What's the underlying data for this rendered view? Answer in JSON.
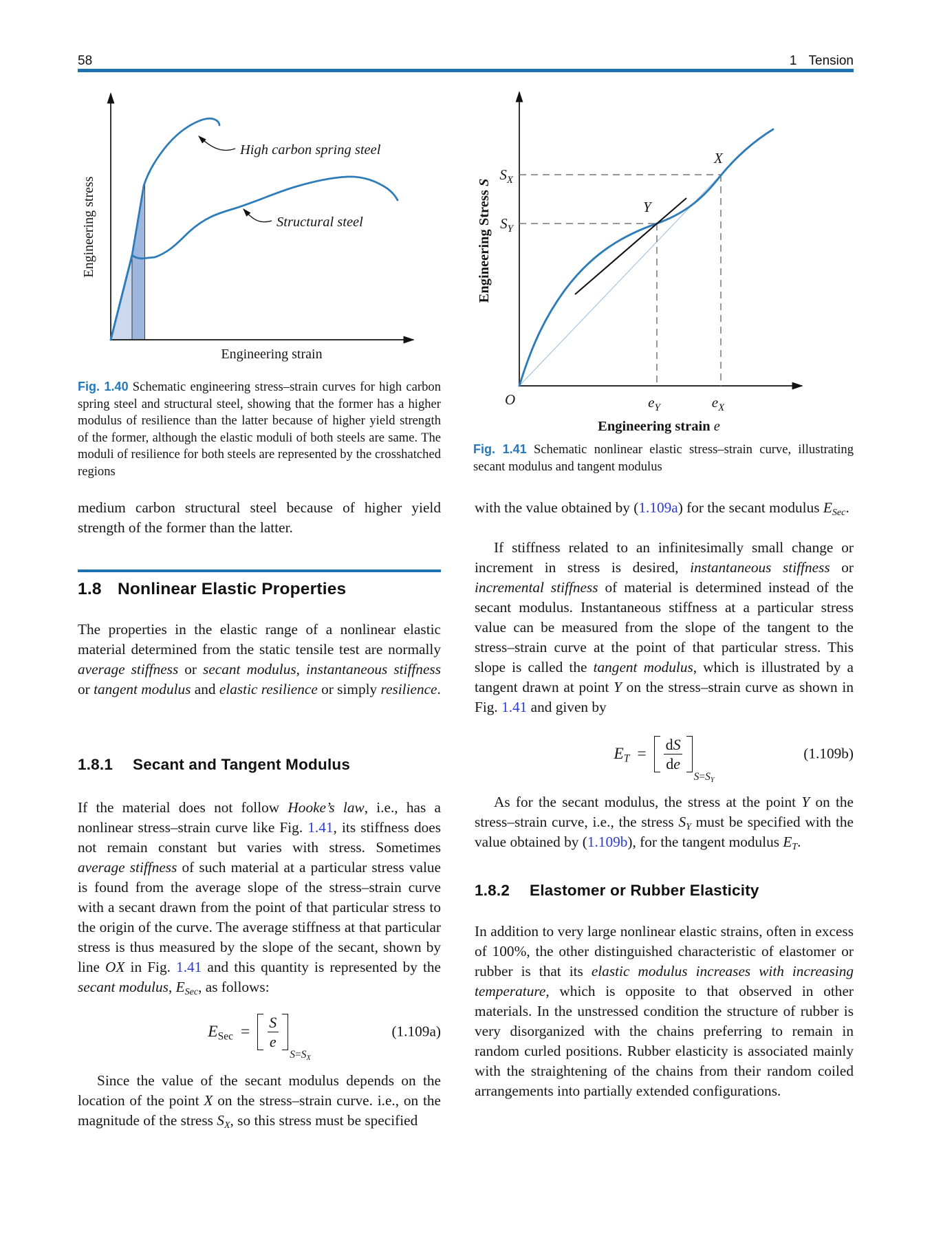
{
  "header": {
    "page_number": "58",
    "chapter_number": "1",
    "chapter_title": "Tension"
  },
  "fig140": {
    "label": "Fig. 1.40",
    "caption": [
      {
        "t": "Fig. 1.40",
        "fig": 1
      },
      {
        "t": "  Schematic engineering stress–strain curves for high carbon spring steel and structural steel, showing that the former has a higher modulus of resilience than the latter because of higher yield strength of the former, although the elastic moduli of both steels are same. The moduli of resilience for both steels are represented by the crosshatched regions"
      }
    ],
    "ylabel": "Engineering stress",
    "xlabel": "Engineering strain",
    "curve1_label": "High carbon spring steel",
    "curve2_label": "Structural steel"
  },
  "fig141": {
    "label": "Fig. 1.41",
    "caption": [
      {
        "t": "Fig. 1.41",
        "fig": 1
      },
      {
        "t": "  Schematic nonlinear elastic stress–strain curve, illustrating secant modulus and tangent modulus"
      }
    ],
    "ylabel": "Engineering Stress",
    "ylabel_var": "S",
    "xlabel": "Engineering strain",
    "xlabel_var": "e",
    "origin": "O",
    "sx_base": "S",
    "sx_sub": "X",
    "sy_base": "S",
    "sy_sub": "Y",
    "point_x": "X",
    "point_y": "Y",
    "ex_base": "e",
    "ex_sub": "X",
    "ey_base": "e",
    "ey_sub": "Y"
  },
  "chart_data": [
    {
      "type": "line",
      "title": "Schematic engineering stress–strain curves for high carbon spring steel and structural steel",
      "xlabel": "Engineering strain",
      "ylabel": "Engineering stress",
      "axes_numeric": false,
      "grid": false,
      "series": [
        {
          "name": "High carbon spring steel",
          "points_norm": [
            [
              0,
              0
            ],
            [
              0.07,
              0.34
            ],
            [
              0.11,
              0.62
            ],
            [
              0.13,
              0.7
            ],
            [
              0.17,
              0.8
            ],
            [
              0.22,
              0.87
            ],
            [
              0.28,
              0.9
            ],
            [
              0.35,
              0.89
            ]
          ]
        },
        {
          "name": "Structural steel",
          "points_norm": [
            [
              0,
              0
            ],
            [
              0.07,
              0.34
            ],
            [
              0.15,
              0.34
            ],
            [
              0.24,
              0.42
            ],
            [
              0.39,
              0.55
            ],
            [
              0.54,
              0.62
            ],
            [
              0.68,
              0.66
            ],
            [
              0.78,
              0.66
            ],
            [
              0.94,
              0.57
            ]
          ]
        }
      ],
      "annotations": [
        "light shaded triangle = modulus of resilience of structural steel",
        "dark shaded region = modulus of resilience of high carbon spring steel"
      ]
    },
    {
      "type": "line",
      "title": "Schematic nonlinear elastic stress–strain curve illustrating secant and tangent modulus",
      "xlabel": "Engineering strain e",
      "ylabel": "Engineering Stress S",
      "axes_numeric": false,
      "grid": false,
      "series": [
        {
          "name": "stress–strain curve",
          "points_norm": [
            [
              0,
              0
            ],
            [
              0.11,
              0.19
            ],
            [
              0.22,
              0.36
            ],
            [
              0.33,
              0.46
            ],
            [
              0.49,
              0.55
            ],
            [
              0.66,
              0.64
            ],
            [
              0.72,
              0.72
            ],
            [
              0.83,
              0.81
            ],
            [
              0.9,
              0.87
            ]
          ]
        },
        {
          "name": "secant line OX",
          "points_norm": [
            [
              0,
              0
            ],
            [
              0.72,
              0.72
            ]
          ]
        },
        {
          "name": "tangent at Y",
          "points_norm": [
            [
              0.2,
              0.31
            ],
            [
              0.6,
              0.64
            ]
          ]
        }
      ],
      "guides": [
        "S_X",
        "S_Y",
        "e_Y",
        "e_X"
      ],
      "points_labeled": {
        "O": [
          0,
          0
        ],
        "Y": [
          0.49,
          0.55
        ],
        "X": [
          0.72,
          0.72
        ]
      }
    }
  ],
  "sections": {
    "s18": {
      "number": "1.8",
      "title": "Nonlinear Elastic Properties"
    },
    "s181": {
      "number": "1.8.1",
      "title": "Secant and Tangent Modulus"
    },
    "s182": {
      "number": "1.8.2",
      "title": "Elastomer or Rubber Elasticity"
    }
  },
  "paragraphs": {
    "p_medium": [
      {
        "t": "medium carbon structural steel because of higher yield strength of the former than the latter."
      }
    ],
    "p_props": [
      {
        "t": "The properties in the elastic range of a nonlinear elastic material determined from the static tensile test are normally "
      },
      {
        "t": "average stiffness",
        "i": 1
      },
      {
        "t": " or "
      },
      {
        "t": "secant modulus",
        "i": 1
      },
      {
        "t": ", "
      },
      {
        "t": "instantaneous stiffness",
        "i": 1
      },
      {
        "t": " or "
      },
      {
        "t": "tangent modulus",
        "i": 1
      },
      {
        "t": " and "
      },
      {
        "t": "elastic resilience",
        "i": 1
      },
      {
        "t": " or simply "
      },
      {
        "t": "resilience",
        "i": 1
      },
      {
        "t": "."
      }
    ],
    "p_if": [
      {
        "t": "If the material does not follow "
      },
      {
        "t": "Hooke’s law",
        "i": 1
      },
      {
        "t": ", i.e., has a nonlinear stress–strain curve like Fig. "
      },
      {
        "t": "1.41",
        "link": 1
      },
      {
        "t": ", its stiffness does not remain constant but varies with stress. Sometimes "
      },
      {
        "t": "average stiffness",
        "i": 1
      },
      {
        "t": " of such material at a particular stress value is found from the average slope of the stress–strain curve with a secant drawn from the point of that particular stress to the origin of the curve. The average stiffness at that particular stress is thus measured by the slope of the secant, shown by line "
      },
      {
        "t": "OX",
        "i": 1
      },
      {
        "t": " in Fig. "
      },
      {
        "t": "1.41",
        "link": 1
      },
      {
        "t": " and this quantity is represented by the "
      },
      {
        "t": "secant modulus",
        "i": 1
      },
      {
        "t": ", "
      },
      {
        "t": "E",
        "i": 1,
        "sub": "Sec",
        "subi": 1
      },
      {
        "t": ", as follows:"
      }
    ],
    "p_since": [
      {
        "t": "Since the value of the secant modulus depends on the location of the point "
      },
      {
        "t": "X",
        "i": 1
      },
      {
        "t": " on the stress–strain curve. i.e., on the magnitude of the stress "
      },
      {
        "t": "S",
        "i": 1,
        "sub": "X",
        "subi": 1
      },
      {
        "t": ", so this stress must be specified"
      }
    ],
    "p_with": [
      {
        "t": "with the value obtained by ("
      },
      {
        "t": "1.109a",
        "link": 1
      },
      {
        "t": ") for the secant modulus "
      },
      {
        "t": "E",
        "i": 1,
        "sub": "Sec",
        "subi": 1
      },
      {
        "t": "."
      }
    ],
    "p_stiff": [
      {
        "t": "If stiffness related to an infinitesimally small change or increment in stress is desired, "
      },
      {
        "t": "instantaneous stiffness",
        "i": 1
      },
      {
        "t": " or "
      },
      {
        "t": "incremental stiffness",
        "i": 1
      },
      {
        "t": " of material is determined instead of the secant modulus. Instantaneous stiffness at a particular stress value can be measured from the slope of the tangent to the stress–strain curve at the point of that particular stress. This slope is called the "
      },
      {
        "t": "tangent modulus",
        "i": 1
      },
      {
        "t": ", which is illustrated by a tangent drawn at point "
      },
      {
        "t": "Y",
        "i": 1
      },
      {
        "t": " on the stress–strain curve as shown in Fig. "
      },
      {
        "t": "1.41",
        "link": 1
      },
      {
        "t": " and given by"
      }
    ],
    "p_asfor": [
      {
        "t": "As for the secant modulus, the stress at the point "
      },
      {
        "t": "Y",
        "i": 1
      },
      {
        "t": " on the stress–strain curve, i.e., the stress "
      },
      {
        "t": "S",
        "i": 1,
        "sub": "Y",
        "subi": 1
      },
      {
        "t": " must be specified with the value obtained by ("
      },
      {
        "t": "1.109b",
        "link": 1
      },
      {
        "t": "), for the tangent modulus "
      },
      {
        "t": "E",
        "i": 1,
        "sub": "T",
        "subi": 1
      },
      {
        "t": "."
      }
    ],
    "p_rubber": [
      {
        "t": "In addition to very large nonlinear elastic strains, often in excess of 100%, the other distinguished characteristic of elastomer or rubber is that its "
      },
      {
        "t": "elastic modulus increases with increasing temperature",
        "i": 1
      },
      {
        "t": ", which is opposite to that observed in other materials. In the unstressed condition the structure of rubber is very disorganized with the chains preferring to remain in random curled positions. Rubber elasticity is associated mainly with the straightening of the chains from their random coiled arrangements into partially extended configurations."
      }
    ]
  },
  "equations": {
    "a": {
      "lhs": [
        {
          "t": "E",
          "i": 1,
          "sub": "Sec"
        }
      ],
      "sign": "=",
      "numer": [
        {
          "t": "S",
          "i": 1
        }
      ],
      "denom": [
        {
          "t": "e",
          "i": 1
        }
      ],
      "condition": [
        {
          "t": "S",
          "i": 1
        },
        {
          "t": "="
        },
        {
          "t": "S",
          "i": 1,
          "sub": "X",
          "subi": 1
        }
      ],
      "number": "(1.109a)"
    },
    "b": {
      "lhs": [
        {
          "t": "E",
          "i": 1,
          "sub": "T",
          "subi": 1
        }
      ],
      "sign": "=",
      "numer": [
        {
          "t": "d"
        },
        {
          "t": "S",
          "i": 1
        }
      ],
      "denom": [
        {
          "t": "d"
        },
        {
          "t": "e",
          "i": 1
        }
      ],
      "condition": [
        {
          "t": "S",
          "i": 1
        },
        {
          "t": "="
        },
        {
          "t": "S",
          "i": 1,
          "sub": "Y",
          "subi": 1
        }
      ],
      "number": "(1.109b)"
    }
  },
  "colors": {
    "rule_blue": "#1e71b0",
    "figure_label_blue": "#2478ba",
    "link_blue": "#2c3bd0",
    "curve_blue": "#2d7cb8",
    "shade_light": "#ccd8ee",
    "shade_dark": "#9cb6de"
  }
}
